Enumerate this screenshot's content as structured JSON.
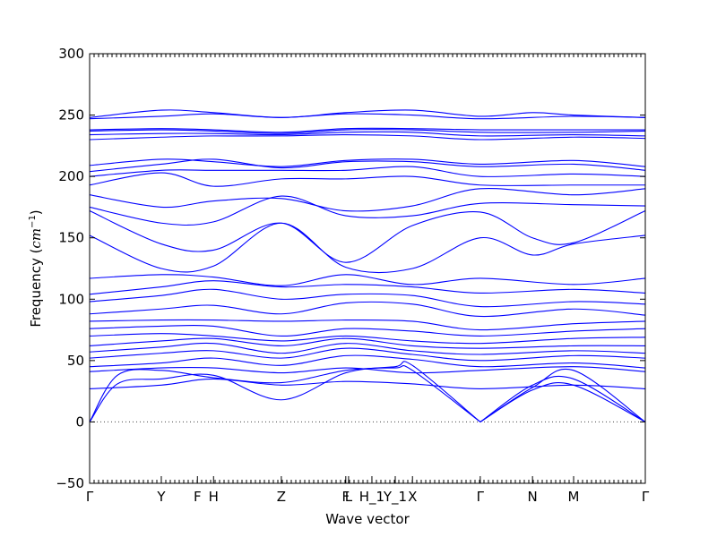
{
  "chart_data": {
    "type": "line",
    "xlabel": "Wave vector",
    "ylabel_main": "Frequency (",
    "ylabel_unit": "cm",
    "ylabel_exp": "−1",
    "ylabel_close": ")",
    "ylim": [
      -50,
      300
    ],
    "yticks": [
      -50,
      0,
      50,
      100,
      150,
      200,
      250,
      300
    ],
    "xlim": [
      0,
      1
    ],
    "x_points": [
      {
        "label": "Γ",
        "x": 0.0
      },
      {
        "label": "Y",
        "x": 0.129
      },
      {
        "label": "F",
        "x": 0.194
      },
      {
        "label": "H",
        "x": 0.223
      },
      {
        "label": "Z",
        "x": 0.345
      },
      {
        "label": "F",
        "x": 0.461
      },
      {
        "label": "L",
        "x": 0.466
      },
      {
        "label": "H_1",
        "x": 0.508
      },
      {
        "label": "Y_1",
        "x": 0.55
      },
      {
        "label": "X",
        "x": 0.581
      },
      {
        "label": "Γ",
        "x": 0.703
      },
      {
        "label": "N",
        "x": 0.797
      },
      {
        "label": "M",
        "x": 0.871
      },
      {
        "label": "Γ",
        "x": 1.0
      }
    ],
    "zero_line": true,
    "line_color": "#0000ff",
    "series": [
      {
        "values": [
          [
            0,
            0
          ],
          [
            0.05,
            31
          ],
          [
            0.129,
            35
          ],
          [
            0.223,
            38
          ],
          [
            0.345,
            18
          ],
          [
            0.461,
            40
          ],
          [
            0.55,
            45
          ],
          [
            0.581,
            46
          ],
          [
            0.703,
            0
          ]
        ]
      },
      {
        "values": [
          [
            0,
            0
          ],
          [
            0.05,
            38
          ],
          [
            0.129,
            42
          ],
          [
            0.223,
            36
          ],
          [
            0.345,
            32
          ],
          [
            0.461,
            42
          ],
          [
            0.55,
            44
          ],
          [
            0.581,
            42
          ],
          [
            0.703,
            0
          ]
        ]
      },
      {
        "values": [
          [
            0.703,
            0
          ],
          [
            0.797,
            30
          ],
          [
            0.871,
            35
          ],
          [
            1.0,
            0
          ]
        ]
      },
      {
        "values": [
          [
            0.703,
            0
          ],
          [
            0.797,
            28
          ],
          [
            0.871,
            42
          ],
          [
            1.0,
            0
          ]
        ]
      },
      {
        "values": [
          [
            0.703,
            0
          ],
          [
            0.797,
            26
          ],
          [
            0.871,
            30
          ],
          [
            1.0,
            0
          ]
        ]
      },
      {
        "values": [
          [
            0,
            27
          ],
          [
            0.129,
            30
          ],
          [
            0.223,
            35
          ],
          [
            0.345,
            30
          ],
          [
            0.461,
            33
          ],
          [
            0.581,
            31
          ],
          [
            0.703,
            27
          ],
          [
            0.871,
            30
          ],
          [
            1.0,
            27
          ]
        ]
      },
      {
        "values": [
          [
            0,
            41
          ],
          [
            0.129,
            44
          ],
          [
            0.223,
            44
          ],
          [
            0.345,
            40
          ],
          [
            0.461,
            44
          ],
          [
            0.581,
            40
          ],
          [
            0.703,
            42
          ],
          [
            0.871,
            45
          ],
          [
            1.0,
            41
          ]
        ]
      },
      {
        "values": [
          [
            0,
            45
          ],
          [
            0.129,
            48
          ],
          [
            0.223,
            52
          ],
          [
            0.345,
            46
          ],
          [
            0.461,
            54
          ],
          [
            0.581,
            51
          ],
          [
            0.703,
            45
          ],
          [
            0.871,
            48
          ],
          [
            1.0,
            44
          ]
        ]
      },
      {
        "values": [
          [
            0,
            52
          ],
          [
            0.129,
            56
          ],
          [
            0.223,
            58
          ],
          [
            0.345,
            52
          ],
          [
            0.461,
            60
          ],
          [
            0.581,
            55
          ],
          [
            0.703,
            50
          ],
          [
            0.871,
            54
          ],
          [
            1.0,
            52
          ]
        ]
      },
      {
        "values": [
          [
            0,
            57
          ],
          [
            0.129,
            61
          ],
          [
            0.223,
            64
          ],
          [
            0.345,
            56
          ],
          [
            0.461,
            64
          ],
          [
            0.581,
            58
          ],
          [
            0.703,
            55
          ],
          [
            0.871,
            58
          ],
          [
            1.0,
            56
          ]
        ]
      },
      {
        "values": [
          [
            0,
            62
          ],
          [
            0.129,
            66
          ],
          [
            0.223,
            68
          ],
          [
            0.345,
            62
          ],
          [
            0.461,
            68
          ],
          [
            0.581,
            62
          ],
          [
            0.703,
            60
          ],
          [
            0.871,
            62
          ],
          [
            1.0,
            62
          ]
        ]
      },
      {
        "values": [
          [
            0,
            70
          ],
          [
            0.129,
            72
          ],
          [
            0.223,
            70
          ],
          [
            0.345,
            66
          ],
          [
            0.461,
            70
          ],
          [
            0.581,
            66
          ],
          [
            0.703,
            64
          ],
          [
            0.871,
            68
          ],
          [
            1.0,
            69
          ]
        ]
      },
      {
        "values": [
          [
            0,
            76
          ],
          [
            0.129,
            78
          ],
          [
            0.223,
            78
          ],
          [
            0.345,
            70
          ],
          [
            0.461,
            76
          ],
          [
            0.581,
            74
          ],
          [
            0.703,
            70
          ],
          [
            0.871,
            74
          ],
          [
            1.0,
            76
          ]
        ]
      },
      {
        "values": [
          [
            0,
            82
          ],
          [
            0.129,
            83
          ],
          [
            0.223,
            83
          ],
          [
            0.345,
            82
          ],
          [
            0.461,
            83
          ],
          [
            0.581,
            82
          ],
          [
            0.703,
            75
          ],
          [
            0.871,
            80
          ],
          [
            1.0,
            82
          ]
        ]
      },
      {
        "values": [
          [
            0,
            88
          ],
          [
            0.129,
            92
          ],
          [
            0.223,
            95
          ],
          [
            0.345,
            88
          ],
          [
            0.461,
            97
          ],
          [
            0.581,
            96
          ],
          [
            0.703,
            86
          ],
          [
            0.871,
            92
          ],
          [
            1.0,
            87
          ]
        ]
      },
      {
        "values": [
          [
            0,
            98
          ],
          [
            0.129,
            103
          ],
          [
            0.223,
            108
          ],
          [
            0.345,
            100
          ],
          [
            0.461,
            104
          ],
          [
            0.581,
            103
          ],
          [
            0.703,
            94
          ],
          [
            0.871,
            98
          ],
          [
            1.0,
            96
          ]
        ]
      },
      {
        "values": [
          [
            0,
            104
          ],
          [
            0.129,
            110
          ],
          [
            0.223,
            115
          ],
          [
            0.345,
            110
          ],
          [
            0.461,
            112
          ],
          [
            0.581,
            110
          ],
          [
            0.703,
            105
          ],
          [
            0.871,
            108
          ],
          [
            1.0,
            105
          ]
        ]
      },
      {
        "values": [
          [
            0,
            117
          ],
          [
            0.129,
            120
          ],
          [
            0.223,
            118
          ],
          [
            0.345,
            111
          ],
          [
            0.461,
            120
          ],
          [
            0.581,
            112
          ],
          [
            0.703,
            117
          ],
          [
            0.871,
            112
          ],
          [
            1.0,
            117
          ]
        ]
      },
      {
        "values": [
          [
            0,
            152
          ],
          [
            0.129,
            125
          ],
          [
            0.223,
            127
          ],
          [
            0.345,
            162
          ],
          [
            0.461,
            126
          ],
          [
            0.581,
            125
          ],
          [
            0.703,
            150
          ],
          [
            0.797,
            136
          ],
          [
            0.871,
            145
          ],
          [
            1.0,
            152
          ]
        ]
      },
      {
        "values": [
          [
            0,
            172
          ],
          [
            0.129,
            145
          ],
          [
            0.223,
            140
          ],
          [
            0.345,
            162
          ],
          [
            0.461,
            130
          ],
          [
            0.581,
            160
          ],
          [
            0.703,
            171
          ],
          [
            0.797,
            150
          ],
          [
            0.871,
            146
          ],
          [
            1.0,
            172
          ]
        ]
      },
      {
        "values": [
          [
            0,
            175
          ],
          [
            0.129,
            162
          ],
          [
            0.223,
            163
          ],
          [
            0.345,
            184
          ],
          [
            0.461,
            168
          ],
          [
            0.581,
            168
          ],
          [
            0.703,
            178
          ],
          [
            0.871,
            177
          ],
          [
            1.0,
            176
          ]
        ]
      },
      {
        "values": [
          [
            0,
            185
          ],
          [
            0.129,
            175
          ],
          [
            0.223,
            180
          ],
          [
            0.345,
            182
          ],
          [
            0.461,
            172
          ],
          [
            0.581,
            176
          ],
          [
            0.703,
            190
          ],
          [
            0.871,
            185
          ],
          [
            1.0,
            190
          ]
        ]
      },
      {
        "values": [
          [
            0,
            193
          ],
          [
            0.129,
            203
          ],
          [
            0.223,
            192
          ],
          [
            0.345,
            198
          ],
          [
            0.461,
            198
          ],
          [
            0.581,
            200
          ],
          [
            0.703,
            193
          ],
          [
            0.871,
            193
          ],
          [
            1.0,
            193
          ]
        ]
      },
      {
        "values": [
          [
            0,
            200
          ],
          [
            0.129,
            205
          ],
          [
            0.223,
            205
          ],
          [
            0.345,
            205
          ],
          [
            0.461,
            205
          ],
          [
            0.581,
            208
          ],
          [
            0.703,
            200
          ],
          [
            0.871,
            202
          ],
          [
            1.0,
            200
          ]
        ]
      },
      {
        "values": [
          [
            0,
            204
          ],
          [
            0.129,
            210
          ],
          [
            0.223,
            214
          ],
          [
            0.345,
            207
          ],
          [
            0.461,
            212
          ],
          [
            0.581,
            212
          ],
          [
            0.703,
            208
          ],
          [
            0.871,
            210
          ],
          [
            1.0,
            205
          ]
        ]
      },
      {
        "values": [
          [
            0,
            209
          ],
          [
            0.129,
            214
          ],
          [
            0.223,
            212
          ],
          [
            0.345,
            208
          ],
          [
            0.461,
            213
          ],
          [
            0.581,
            214
          ],
          [
            0.703,
            210
          ],
          [
            0.871,
            213
          ],
          [
            1.0,
            208
          ]
        ]
      },
      {
        "values": [
          [
            0,
            230
          ],
          [
            0.129,
            232
          ],
          [
            0.223,
            233
          ],
          [
            0.345,
            233
          ],
          [
            0.461,
            234
          ],
          [
            0.581,
            233
          ],
          [
            0.703,
            230
          ],
          [
            0.871,
            232
          ],
          [
            1.0,
            231
          ]
        ]
      },
      {
        "values": [
          [
            0,
            234
          ],
          [
            0.129,
            235
          ],
          [
            0.223,
            235
          ],
          [
            0.345,
            234
          ],
          [
            0.461,
            236
          ],
          [
            0.581,
            236
          ],
          [
            0.703,
            233
          ],
          [
            0.871,
            234
          ],
          [
            1.0,
            233
          ]
        ]
      },
      {
        "values": [
          [
            0,
            237
          ],
          [
            0.129,
            238
          ],
          [
            0.223,
            237
          ],
          [
            0.345,
            235
          ],
          [
            0.461,
            238
          ],
          [
            0.581,
            238
          ],
          [
            0.703,
            236
          ],
          [
            0.871,
            236
          ],
          [
            1.0,
            237
          ]
        ]
      },
      {
        "values": [
          [
            0,
            238
          ],
          [
            0.129,
            239
          ],
          [
            0.223,
            238
          ],
          [
            0.345,
            236
          ],
          [
            0.461,
            239
          ],
          [
            0.581,
            239
          ],
          [
            0.703,
            238
          ],
          [
            0.871,
            238
          ],
          [
            1.0,
            238
          ]
        ]
      },
      {
        "values": [
          [
            0,
            247
          ],
          [
            0.129,
            249
          ],
          [
            0.223,
            251
          ],
          [
            0.345,
            248
          ],
          [
            0.461,
            251
          ],
          [
            0.581,
            250
          ],
          [
            0.703,
            247
          ],
          [
            0.871,
            249
          ],
          [
            1.0,
            248
          ]
        ]
      },
      {
        "values": [
          [
            0,
            248
          ],
          [
            0.129,
            254
          ],
          [
            0.223,
            252
          ],
          [
            0.345,
            248
          ],
          [
            0.461,
            252
          ],
          [
            0.581,
            254
          ],
          [
            0.703,
            249
          ],
          [
            0.797,
            252
          ],
          [
            0.871,
            250
          ],
          [
            1.0,
            248
          ]
        ]
      }
    ]
  }
}
